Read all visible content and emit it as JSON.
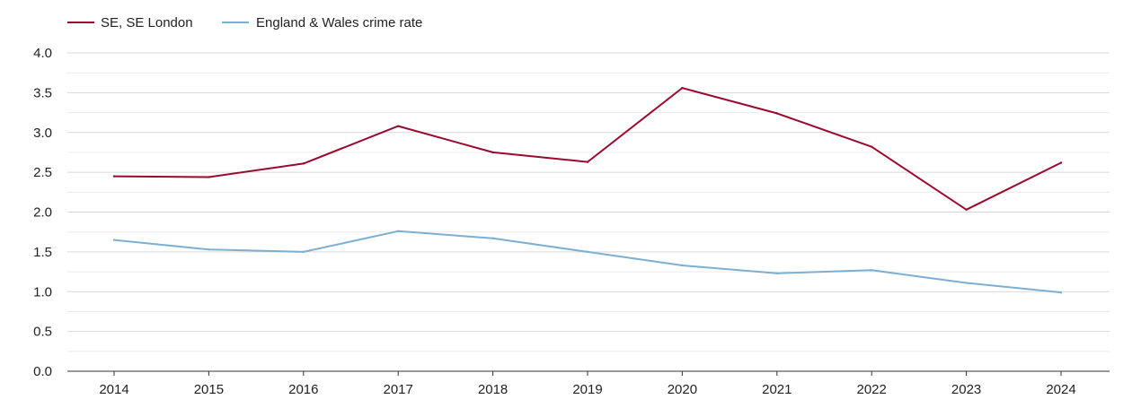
{
  "chart_data": {
    "type": "line",
    "title": "",
    "xlabel": "",
    "ylabel": "",
    "categories": [
      "2014",
      "2015",
      "2016",
      "2017",
      "2018",
      "2019",
      "2020",
      "2021",
      "2022",
      "2023",
      "2024"
    ],
    "ylim": [
      0,
      4
    ],
    "y_ticks": [
      "0.0",
      "0.5",
      "1.0",
      "1.5",
      "2.0",
      "2.5",
      "3.0",
      "3.5",
      "4.0"
    ],
    "grid": true,
    "legend_position": "top-left",
    "series": [
      {
        "name": "SE, SE London",
        "color": "#9b0a2e",
        "values": [
          2.45,
          2.44,
          2.61,
          3.08,
          2.75,
          2.63,
          3.56,
          3.24,
          2.82,
          2.03,
          2.62
        ]
      },
      {
        "name": "England & Wales crime rate",
        "color": "#7bafd4",
        "values": [
          1.65,
          1.53,
          1.5,
          1.76,
          1.67,
          1.5,
          1.33,
          1.23,
          1.27,
          1.11,
          0.99
        ]
      }
    ]
  }
}
